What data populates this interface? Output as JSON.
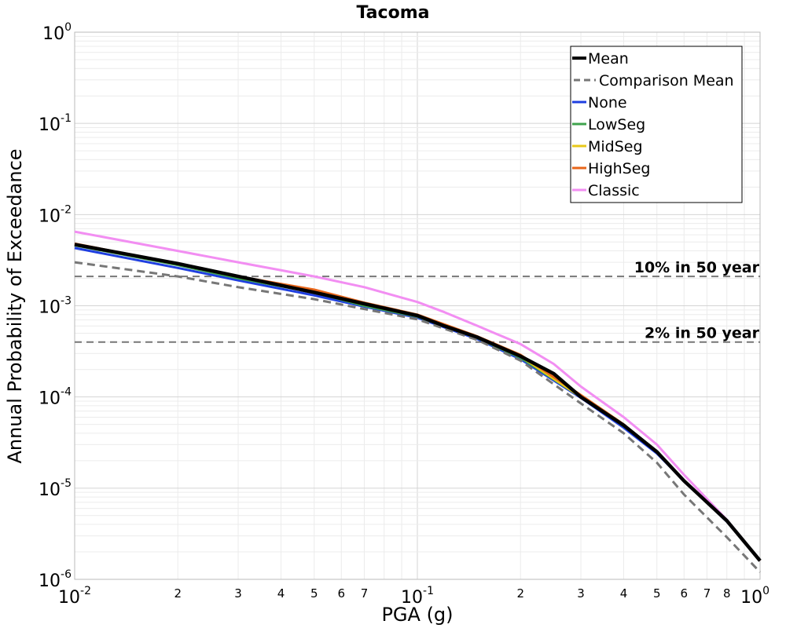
{
  "chart_data": {
    "type": "line",
    "title": "Tacoma",
    "xlabel": "PGA (g)",
    "ylabel": "Annual Probability of Exceedance",
    "x_scale": "log",
    "y_scale": "log",
    "xlim": [
      0.01,
      1.0
    ],
    "ylim": [
      1e-06,
      1.0
    ],
    "grid": true,
    "legend_position": "top-right",
    "x_tick_labels": {
      "major": [
        {
          "value": 0.01,
          "base": "10",
          "exp": "-2"
        },
        {
          "value": 0.1,
          "base": "10",
          "exp": "-1"
        },
        {
          "value": 1.0,
          "base": "10",
          "exp": "0"
        }
      ],
      "minor": [
        {
          "value": 0.02,
          "label": "2"
        },
        {
          "value": 0.03,
          "label": "3"
        },
        {
          "value": 0.04,
          "label": "4"
        },
        {
          "value": 0.05,
          "label": "5"
        },
        {
          "value": 0.06,
          "label": "6"
        },
        {
          "value": 0.07,
          "label": "7"
        },
        {
          "value": 0.2,
          "label": "2"
        },
        {
          "value": 0.3,
          "label": "3"
        },
        {
          "value": 0.4,
          "label": "4"
        },
        {
          "value": 0.5,
          "label": "5"
        },
        {
          "value": 0.6,
          "label": "6"
        },
        {
          "value": 0.7,
          "label": "7"
        },
        {
          "value": 0.8,
          "label": "8"
        }
      ]
    },
    "y_tick_labels": [
      {
        "value": 1.0,
        "base": "10",
        "exp": "0"
      },
      {
        "value": 0.1,
        "base": "10",
        "exp": "-1"
      },
      {
        "value": 0.01,
        "base": "10",
        "exp": "-2"
      },
      {
        "value": 0.001,
        "base": "10",
        "exp": "-3"
      },
      {
        "value": 0.0001,
        "base": "10",
        "exp": "-4"
      },
      {
        "value": 1e-05,
        "base": "10",
        "exp": "-5"
      },
      {
        "value": 1e-06,
        "base": "10",
        "exp": "-6"
      }
    ],
    "reference_lines": [
      {
        "label": "10% in 50 year",
        "y": 0.0021,
        "color": "#777777"
      },
      {
        "label": "2% in 50 year",
        "y": 0.0004,
        "color": "#777777"
      }
    ],
    "series": [
      {
        "name": "None",
        "color": "#1f3fe0",
        "dash": "solid",
        "width": 3,
        "x": [
          0.01,
          0.02,
          0.03,
          0.05,
          0.07,
          0.1,
          0.15,
          0.2,
          0.3,
          0.4,
          0.5,
          0.6,
          0.8,
          1.0
        ],
        "y": [
          0.0043,
          0.0026,
          0.0019,
          0.0013,
          0.00098,
          0.00074,
          0.00043,
          0.00026,
          9.8e-05,
          4.6e-05,
          2.4e-05,
          1.2e-05,
          4.3e-06,
          1.6e-06
        ]
      },
      {
        "name": "LowSeg",
        "color": "#3fa34d",
        "dash": "solid",
        "width": 3,
        "x": [
          0.01,
          0.02,
          0.03,
          0.05,
          0.07,
          0.1,
          0.15,
          0.2,
          0.3,
          0.4,
          0.5,
          0.6,
          0.8,
          1.0
        ],
        "y": [
          0.0046,
          0.0028,
          0.002,
          0.0014,
          0.001,
          0.00076,
          0.00044,
          0.00027,
          0.0001,
          4.8e-05,
          2.5e-05,
          1.2e-05,
          4.4e-06,
          1.6e-06
        ]
      },
      {
        "name": "MidSeg",
        "color": "#e8c81a",
        "dash": "solid",
        "width": 3,
        "x": [
          0.01,
          0.02,
          0.03,
          0.05,
          0.07,
          0.1,
          0.15,
          0.2,
          0.3,
          0.4,
          0.5,
          0.6,
          0.8,
          1.0
        ],
        "y": [
          0.0047,
          0.0029,
          0.0021,
          0.0014,
          0.00105,
          0.00078,
          0.00045,
          0.00028,
          0.0001,
          4.9e-05,
          2.5e-05,
          1.2e-05,
          4.4e-06,
          1.6e-06
        ]
      },
      {
        "name": "HighSeg",
        "color": "#e8661a",
        "dash": "solid",
        "width": 3,
        "x": [
          0.01,
          0.02,
          0.03,
          0.05,
          0.07,
          0.1,
          0.15,
          0.2,
          0.3,
          0.4,
          0.5,
          0.6,
          0.8,
          1.0
        ],
        "y": [
          0.0048,
          0.0029,
          0.0021,
          0.0015,
          0.00108,
          0.0008,
          0.00046,
          0.00029,
          0.000105,
          5e-05,
          2.5e-05,
          1.2e-05,
          4.4e-06,
          1.6e-06
        ]
      },
      {
        "name": "Classic",
        "color": "#f28ef2",
        "dash": "solid",
        "width": 3,
        "x": [
          0.01,
          0.02,
          0.03,
          0.05,
          0.07,
          0.1,
          0.12,
          0.15,
          0.2,
          0.25,
          0.3,
          0.4,
          0.5,
          0.6,
          0.8,
          1.0
        ],
        "y": [
          0.0065,
          0.004,
          0.003,
          0.0021,
          0.0016,
          0.0011,
          0.00085,
          0.0006,
          0.00038,
          0.00023,
          0.00013,
          6e-05,
          3e-05,
          1.4e-05,
          4.5e-06,
          1.6e-06
        ]
      },
      {
        "name": "Comparison Mean",
        "color": "#777777",
        "dash": "dashed",
        "width": 3,
        "x": [
          0.01,
          0.02,
          0.03,
          0.05,
          0.07,
          0.1,
          0.15,
          0.2,
          0.3,
          0.4,
          0.5,
          0.6,
          0.8,
          1.0
        ],
        "y": [
          0.003,
          0.0021,
          0.0016,
          0.00118,
          0.00092,
          0.00071,
          0.00042,
          0.00025,
          8.5e-05,
          4e-05,
          1.9e-05,
          8.5e-06,
          2.9e-06,
          1.2e-06
        ]
      },
      {
        "name": "Mean",
        "color": "#000000",
        "dash": "solid",
        "width": 4.5,
        "x": [
          0.01,
          0.02,
          0.03,
          0.05,
          0.07,
          0.1,
          0.12,
          0.15,
          0.2,
          0.25,
          0.3,
          0.4,
          0.5,
          0.6,
          0.8,
          1.0
        ],
        "y": [
          0.0047,
          0.0029,
          0.0021,
          0.0014,
          0.00105,
          0.00078,
          0.0006,
          0.00045,
          0.00028,
          0.00018,
          0.0001,
          4.9e-05,
          2.5e-05,
          1.2e-05,
          4.4e-06,
          1.6e-06
        ]
      }
    ],
    "legend_order": [
      "Mean",
      "Comparison Mean",
      "None",
      "LowSeg",
      "MidSeg",
      "HighSeg",
      "Classic"
    ]
  }
}
